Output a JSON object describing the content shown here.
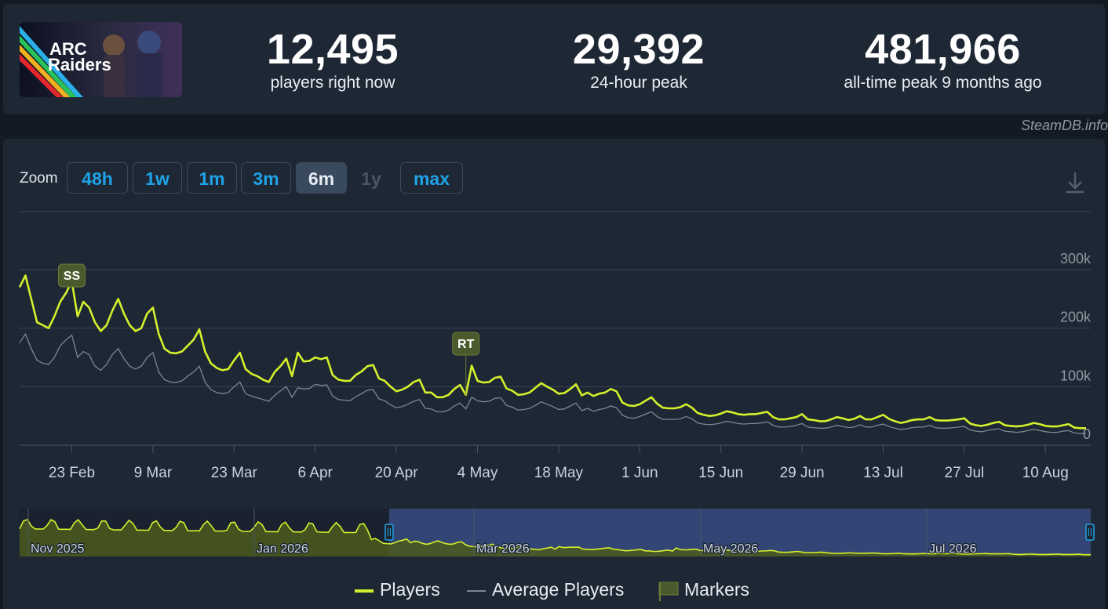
{
  "header": {
    "logo_text": [
      "ARC",
      "Raiders"
    ],
    "stats": {
      "now_value": "12,495",
      "now_label": "players right now",
      "peak24_value": "29,392",
      "peak24_label": "24-hour peak",
      "alltime_value": "481,966",
      "alltime_label": "all-time peak 9 months ago"
    }
  },
  "brand": "SteamDB.info",
  "zoom": {
    "label": "Zoom",
    "buttons": [
      {
        "label": "48h",
        "state": "normal"
      },
      {
        "label": "1w",
        "state": "normal"
      },
      {
        "label": "1m",
        "state": "normal"
      },
      {
        "label": "3m",
        "state": "normal"
      },
      {
        "label": "6m",
        "state": "active"
      },
      {
        "label": "1y",
        "state": "disabled"
      },
      {
        "label": "max",
        "state": "normal"
      }
    ]
  },
  "colors": {
    "players": "#d4f02c",
    "average": "#7d8791",
    "grid": "#3a4553",
    "marker_bg": "#4a5a2c",
    "navigator_fill": "#4b5a1c",
    "navigator_selected": "#334574"
  },
  "legend": {
    "players": "Players",
    "average": "Average Players",
    "markers": "Markers"
  },
  "chart_data": {
    "type": "line",
    "y_ticks": [
      "0",
      "100k",
      "200k",
      "300k"
    ],
    "ylim": [
      0,
      300000
    ],
    "x_ticks": [
      "23 Feb",
      "9 Mar",
      "23 Mar",
      "6 Apr",
      "20 Apr",
      "4 May",
      "18 May",
      "1 Jun",
      "15 Jun",
      "29 Jun",
      "13 Jul",
      "27 Jul",
      "10 Aug"
    ],
    "markers": [
      {
        "label": "SS",
        "date_index": 9
      },
      {
        "label": "RT",
        "date_index": 77
      }
    ],
    "series": [
      {
        "name": "Players",
        "values": [
          270000,
          290000,
          250000,
          210000,
          205000,
          200000,
          220000,
          245000,
          260000,
          280000,
          220000,
          245000,
          235000,
          210000,
          195000,
          205000,
          230000,
          250000,
          225000,
          205000,
          195000,
          200000,
          225000,
          235000,
          190000,
          165000,
          158000,
          157000,
          160000,
          170000,
          180000,
          198000,
          160000,
          140000,
          132000,
          128000,
          130000,
          145000,
          158000,
          130000,
          122000,
          118000,
          112000,
          108000,
          125000,
          135000,
          148000,
          118000,
          158000,
          143000,
          144000,
          150000,
          147000,
          150000,
          120000,
          112000,
          110000,
          110000,
          120000,
          126000,
          135000,
          137000,
          114000,
          110000,
          100000,
          92000,
          95000,
          100000,
          108000,
          112000,
          90000,
          90000,
          82000,
          82000,
          86000,
          96000,
          103000,
          86000,
          136000,
          110000,
          107000,
          108000,
          115000,
          117000,
          97000,
          93000,
          86000,
          87000,
          90000,
          98000,
          106000,
          100000,
          95000,
          88000,
          89000,
          96000,
          104000,
          85000,
          90000,
          84000,
          88000,
          90000,
          96000,
          92000,
          73000,
          68000,
          67000,
          70000,
          76000,
          82000,
          71000,
          64000,
          63000,
          63000,
          65000,
          70000,
          64000,
          55000,
          52000,
          50000,
          51000,
          54000,
          58000,
          56000,
          53000,
          52000,
          53000,
          53000,
          55000,
          57000,
          48000,
          44000,
          44000,
          46000,
          48000,
          53000,
          44000,
          43000,
          41000,
          41000,
          44000,
          48000,
          46000,
          43000,
          45000,
          50000,
          44000,
          44000,
          48000,
          52000,
          45000,
          41000,
          38000,
          40000,
          43000,
          44000,
          44000,
          48000,
          43000,
          42000,
          42000,
          43000,
          44000,
          46000,
          37000,
          34000,
          33000,
          35000,
          38000,
          40000,
          34000,
          33000,
          32000,
          33000,
          35000,
          38000,
          36000,
          33000,
          32000,
          32000,
          34000,
          36000,
          30000,
          29000,
          29000
        ]
      },
      {
        "name": "Average Players",
        "values": [
          175000,
          190000,
          165000,
          145000,
          140000,
          138000,
          150000,
          170000,
          180000,
          188000,
          150000,
          160000,
          155000,
          135000,
          128000,
          138000,
          155000,
          165000,
          148000,
          135000,
          130000,
          135000,
          150000,
          158000,
          125000,
          112000,
          108000,
          107000,
          110000,
          118000,
          125000,
          135000,
          108000,
          95000,
          90000,
          88000,
          90000,
          100000,
          108000,
          88000,
          84000,
          81000,
          78000,
          75000,
          85000,
          93000,
          100000,
          82000,
          98000,
          96000,
          97000,
          104000,
          102000,
          103000,
          84000,
          78000,
          77000,
          76000,
          83000,
          88000,
          94000,
          95000,
          79000,
          76000,
          69000,
          64000,
          66000,
          70000,
          75000,
          78000,
          63000,
          62000,
          57000,
          57000,
          60000,
          67000,
          72000,
          62000,
          82000,
          76000,
          74000,
          75000,
          80000,
          81000,
          68000,
          65000,
          60000,
          61000,
          63000,
          68000,
          74000,
          70000,
          66000,
          61000,
          62000,
          67000,
          72000,
          59000,
          63000,
          58000,
          61000,
          63000,
          67000,
          64000,
          51000,
          47000,
          46000,
          49000,
          53000,
          57000,
          49000,
          44000,
          44000,
          44000,
          45000,
          49000,
          45000,
          38000,
          36000,
          35000,
          36000,
          38000,
          41000,
          39000,
          37000,
          36000,
          37000,
          37000,
          38000,
          40000,
          34000,
          31000,
          31000,
          32000,
          34000,
          37000,
          31000,
          30000,
          29000,
          29000,
          31000,
          34000,
          32000,
          30000,
          31000,
          35000,
          31000,
          31000,
          34000,
          36000,
          32000,
          29000,
          27000,
          28000,
          30000,
          31000,
          31000,
          34000,
          30000,
          29000,
          29000,
          30000,
          31000,
          32000,
          26000,
          24000,
          23000,
          25000,
          27000,
          28000,
          24000,
          23000,
          22000,
          23000,
          25000,
          27000,
          25000,
          23000,
          22000,
          22000,
          24000,
          25000,
          21000,
          20000,
          20000
        ]
      }
    ],
    "navigator": {
      "labels": [
        "Nov 2025",
        "Jan 2026",
        "Mar 2026",
        "May 2026",
        "Jul 2026"
      ],
      "selected_from": 0.345,
      "selected_to": 1.0
    }
  }
}
